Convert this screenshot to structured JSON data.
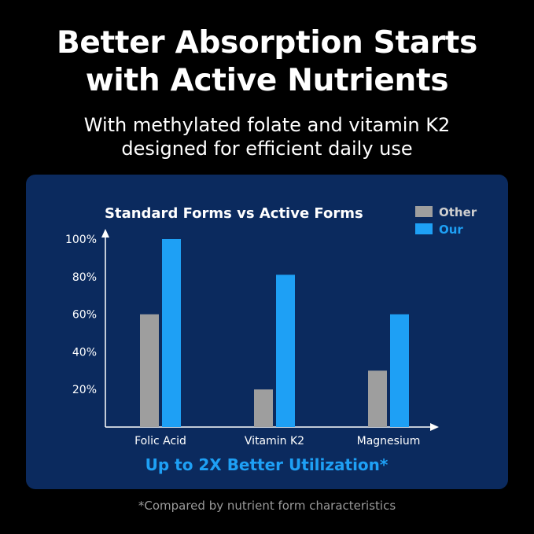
{
  "header": {
    "title_line1": "Better Absorption Starts",
    "title_line2": "with Active Nutrients",
    "subtitle_line1": "With methylated folate and vitamin K2",
    "subtitle_line2": "designed for efficient daily use"
  },
  "callout": "Up to 2X Better Utilization*",
  "footnote": "*Compared by nutrient form characteristics",
  "colors": {
    "background": "#000000",
    "panel": "#0b2a5e",
    "other": "#9e9e9e",
    "our": "#1ea0f5",
    "callout": "#1ea0f5"
  },
  "chart_data": {
    "type": "bar",
    "title": "Standard Forms vs Active Forms",
    "categories": [
      "Folic Acid",
      "Vitamin K2",
      "Magnesium"
    ],
    "series": [
      {
        "name": "Other",
        "values": [
          60,
          20,
          30
        ]
      },
      {
        "name": "Our",
        "values": [
          100,
          81,
          60
        ]
      }
    ],
    "yticks": [
      "20%",
      "40%",
      "60%",
      "80%",
      "100%"
    ],
    "ytick_values": [
      20,
      40,
      60,
      80,
      100
    ],
    "ylim": [
      0,
      100
    ],
    "xlabel": "",
    "ylabel": "",
    "grid": false,
    "legend": "top-right"
  }
}
